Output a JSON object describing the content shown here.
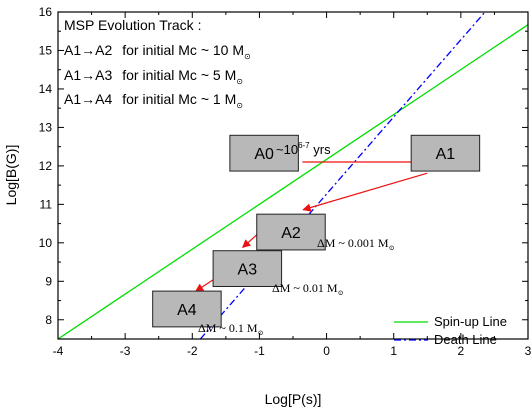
{
  "chart_data": {
    "type": "line",
    "title": "",
    "xlabel": "Log[P(s)]",
    "ylabel": "Log[B(G)]",
    "xlim": [
      -4,
      3
    ],
    "ylim": [
      7.5,
      16
    ],
    "x_ticks": [
      -4,
      -3,
      -2,
      -1,
      0,
      1,
      2,
      3
    ],
    "y_ticks": [
      8,
      9,
      10,
      11,
      12,
      13,
      14,
      15,
      16
    ],
    "x_tick_labels": [
      "-4",
      "-3",
      "-2",
      "-1",
      "0",
      "1",
      "2",
      "3"
    ],
    "y_tick_labels": [
      "8",
      "9",
      "10",
      "11",
      "12",
      "13",
      "14",
      "15",
      "16"
    ],
    "grid": false,
    "legend_position": "bottom-right",
    "series": [
      {
        "name": "Spin-up Line",
        "color": "#00dd00",
        "style": "solid",
        "points": [
          [
            -4,
            7.5
          ],
          [
            3,
            15.67
          ]
        ]
      },
      {
        "name": "Death Line",
        "color": "#0000ff",
        "style": "dashdot",
        "points": [
          [
            -1.88,
            7.5
          ],
          [
            2.36,
            16
          ]
        ]
      }
    ],
    "boxes": [
      {
        "label": "A0",
        "x": -0.93,
        "y": 12.33
      },
      {
        "label": "A1",
        "x": 1.77,
        "y": 12.33
      },
      {
        "label": "A2",
        "x": -0.53,
        "y": 10.28
      },
      {
        "label": "A3",
        "x": -1.18,
        "y": 9.33
      },
      {
        "label": "A4",
        "x": -2.08,
        "y": 8.28
      }
    ],
    "arrows": [
      {
        "from": [
          -0.36,
          12.1
        ],
        "to": [
          1.5,
          12.1
        ]
      },
      {
        "from": [
          1.5,
          11.81
        ],
        "to": [
          -0.35,
          10.86
        ]
      },
      {
        "from": [
          -1.0,
          10.27
        ],
        "to": [
          -1.25,
          9.88
        ]
      },
      {
        "from": [
          -1.68,
          9.05
        ],
        "to": [
          -1.95,
          8.74
        ]
      }
    ],
    "box_w": 1.02,
    "box_h": 0.93,
    "annotations": {
      "evolution_title": "MSP Evolution Track :",
      "track_lines": [
        {
          "path": "A1→A2",
          "text": "for  initial  Mc ~ 10 M",
          "sub": "⊙"
        },
        {
          "path": "A1→A3",
          "text": "for  initial  Mc ~ 5 M",
          "sub": "⊙"
        },
        {
          "path": "A1→A4",
          "text": "for  initial  Mc ~ 1 M",
          "sub": "⊙"
        }
      ],
      "time_label": {
        "base": "~10",
        "sup": "6-7",
        "suffix": " yrs"
      },
      "mass_labels": [
        {
          "text": "ΔM  ~  0.001 M",
          "sub": "⊙"
        },
        {
          "text": "ΔM  ~  0.01 M",
          "sub": "⊙"
        },
        {
          "text": "ΔM  ~  0.1 M",
          "sub": "⊙"
        }
      ]
    },
    "colors": {
      "arrow": "#ee1111",
      "box_fill": "#b8b8b8",
      "box_stroke": "#222222"
    }
  }
}
